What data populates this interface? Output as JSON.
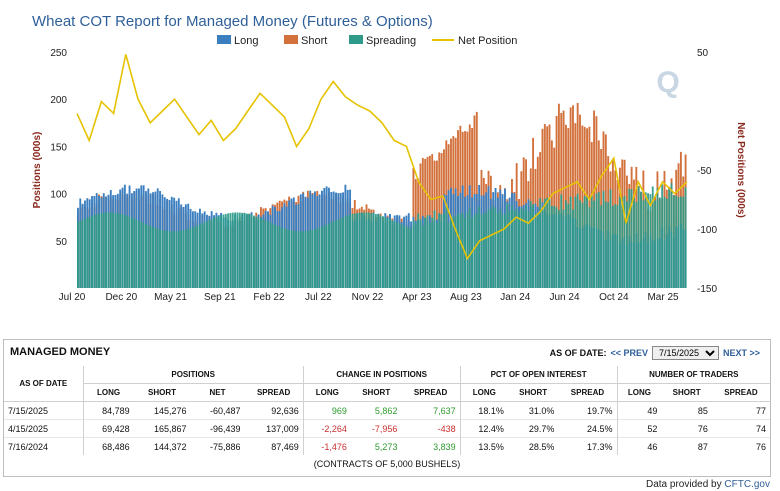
{
  "chart_data": {
    "type": "bar",
    "title": "Wheat COT Report for Managed Money (Futures & Options)",
    "legend": [
      "Long",
      "Short",
      "Spreading",
      "Net Position"
    ],
    "legend_position": "top",
    "series": [
      {
        "name": "Long",
        "color": "#3b7fc0",
        "approx_range": [
          60,
          105
        ]
      },
      {
        "name": "Short",
        "color": "#d2713c",
        "approx_range": [
          60,
          200
        ]
      },
      {
        "name": "Spreading",
        "color": "#2e9b8a",
        "approx_range": [
          55,
          130
        ]
      },
      {
        "name": "Net Position",
        "color": "#e6c200",
        "type": "line",
        "axis": "right"
      }
    ],
    "net_position_path": [
      [
        0,
        -2
      ],
      [
        0.02,
        -25
      ],
      [
        0.04,
        8
      ],
      [
        0.06,
        -2
      ],
      [
        0.08,
        48
      ],
      [
        0.1,
        10
      ],
      [
        0.12,
        -10
      ],
      [
        0.14,
        0
      ],
      [
        0.16,
        10
      ],
      [
        0.18,
        -5
      ],
      [
        0.2,
        -20
      ],
      [
        0.22,
        -8
      ],
      [
        0.24,
        -25
      ],
      [
        0.26,
        -15
      ],
      [
        0.28,
        0
      ],
      [
        0.3,
        15
      ],
      [
        0.32,
        5
      ],
      [
        0.34,
        -5
      ],
      [
        0.36,
        -30
      ],
      [
        0.38,
        -15
      ],
      [
        0.4,
        10
      ],
      [
        0.42,
        25
      ],
      [
        0.44,
        12
      ],
      [
        0.46,
        5
      ],
      [
        0.48,
        0
      ],
      [
        0.5,
        -10
      ],
      [
        0.52,
        -25
      ],
      [
        0.54,
        -30
      ],
      [
        0.56,
        -60
      ],
      [
        0.58,
        -75
      ],
      [
        0.6,
        -72
      ],
      [
        0.62,
        -100
      ],
      [
        0.64,
        -125
      ],
      [
        0.66,
        -110
      ],
      [
        0.68,
        -105
      ],
      [
        0.7,
        -100
      ],
      [
        0.72,
        -90
      ],
      [
        0.74,
        -95
      ],
      [
        0.76,
        -85
      ],
      [
        0.78,
        -70
      ],
      [
        0.8,
        -65
      ],
      [
        0.82,
        -60
      ],
      [
        0.84,
        -75
      ],
      [
        0.86,
        -55
      ],
      [
        0.88,
        -40
      ],
      [
        0.9,
        -95
      ],
      [
        0.92,
        -60
      ],
      [
        0.94,
        -80
      ],
      [
        0.96,
        -60
      ],
      [
        0.98,
        -70
      ],
      [
        1,
        -60
      ]
    ],
    "x_ticks": [
      "Jul 20",
      "Dec 20",
      "May 21",
      "Sep 21",
      "Feb 22",
      "Jul 22",
      "Nov 22",
      "Apr 23",
      "Aug 23",
      "Jan 24",
      "Jun 24",
      "Oct 24",
      "Mar 25"
    ],
    "y_left": {
      "label": "Positions (000s)",
      "ticks": [
        50,
        100,
        150,
        200,
        250
      ],
      "range": [
        0,
        250
      ]
    },
    "y_right": {
      "label": "Net Positions (000s)",
      "ticks": [
        50,
        -50,
        -100,
        -150
      ],
      "range": [
        -150,
        50
      ]
    },
    "grid": false
  },
  "credit": {
    "prefix": "Data provided by",
    "link": "CFTC.gov"
  },
  "watermark": "Q",
  "panel": {
    "title": "MANAGED MONEY",
    "as_of_label": "AS OF DATE:",
    "prev": "<< PREV",
    "selected_date": "7/15/2025",
    "next": "NEXT >>",
    "group_headers": [
      "POSITIONS",
      "CHANGE IN POSITIONS",
      "PCT OF OPEN INTEREST",
      "NUMBER OF TRADERS"
    ],
    "as_of_header": "AS OF DATE",
    "sub_headers": [
      "LONG",
      "SHORT",
      "NET",
      "SPREAD",
      "LONG",
      "SHORT",
      "SPREAD",
      "LONG",
      "SHORT",
      "SPREAD",
      "LONG",
      "SHORT",
      "SPREAD"
    ],
    "rows": [
      {
        "date": "7/15/2025",
        "cells": [
          "84,789",
          "145,276",
          "-60,487",
          "92,636",
          "969",
          "5,862",
          "7,637",
          "18.1%",
          "31.0%",
          "19.7%",
          "49",
          "85",
          "77"
        ]
      },
      {
        "date": "4/15/2025",
        "cells": [
          "69,428",
          "165,867",
          "-96,439",
          "137,009",
          "-2,264",
          "-7,956",
          "-438",
          "12.4%",
          "29.7%",
          "24.5%",
          "52",
          "76",
          "74"
        ]
      },
      {
        "date": "7/16/2024",
        "cells": [
          "68,486",
          "144,372",
          "-75,886",
          "87,469",
          "-1,476",
          "5,273",
          "3,839",
          "13.5%",
          "28.5%",
          "17.3%",
          "46",
          "87",
          "76"
        ]
      }
    ],
    "footnote": "(CONTRACTS OF 5,000 BUSHELS)"
  }
}
